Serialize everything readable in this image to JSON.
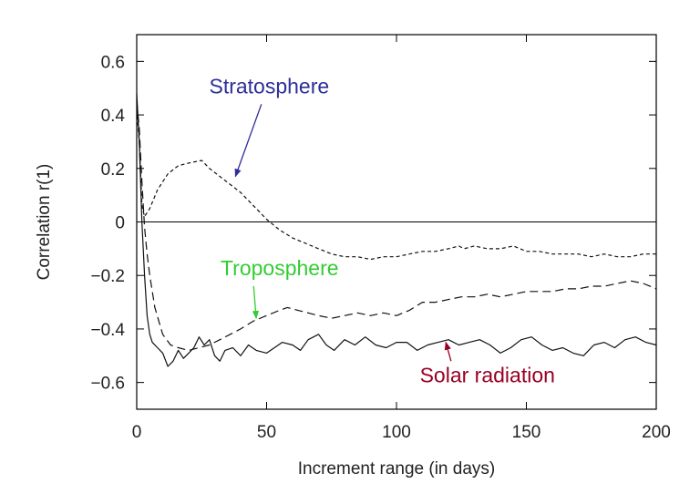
{
  "chart_data": {
    "type": "line",
    "xlabel": "Increment range (in days)",
    "ylabel": "Correlation r(1)",
    "xlim": [
      0,
      200
    ],
    "ylim": [
      -0.7,
      0.7
    ],
    "xticks": [
      0,
      50,
      100,
      150,
      200
    ],
    "yticks": [
      -0.6,
      -0.4,
      -0.2,
      0,
      0.2,
      0.4,
      0.6
    ],
    "xtick_labels": [
      "0",
      "50",
      "100",
      "150",
      "200"
    ],
    "ytick_labels": [
      "−0.6",
      "−0.4",
      "−0.2",
      "0",
      "0.2",
      "0.4",
      "0.6"
    ],
    "grid": false,
    "zero_line": true,
    "series": [
      {
        "name": "Stratosphere",
        "color": "#2e2e99",
        "dash": "short-dash",
        "x": [
          0,
          1,
          2,
          3,
          5,
          8,
          12,
          16,
          20,
          25,
          28,
          32,
          36,
          40,
          45,
          50,
          55,
          60,
          65,
          70,
          75,
          80,
          85,
          90,
          95,
          100,
          105,
          110,
          115,
          120,
          124,
          126,
          130,
          135,
          140,
          145,
          150,
          155,
          160,
          165,
          170,
          175,
          180,
          185,
          190,
          195,
          200
        ],
        "y": [
          0.42,
          0.3,
          0.06,
          0.02,
          0.05,
          0.12,
          0.18,
          0.21,
          0.22,
          0.23,
          0.2,
          0.17,
          0.14,
          0.11,
          0.06,
          0.01,
          -0.03,
          -0.06,
          -0.08,
          -0.1,
          -0.12,
          -0.13,
          -0.13,
          -0.14,
          -0.13,
          -0.13,
          -0.12,
          -0.11,
          -0.11,
          -0.1,
          -0.09,
          -0.1,
          -0.09,
          -0.1,
          -0.1,
          -0.09,
          -0.11,
          -0.11,
          -0.12,
          -0.12,
          -0.12,
          -0.13,
          -0.12,
          -0.13,
          -0.13,
          -0.12,
          -0.12
        ]
      },
      {
        "name": "Troposphere",
        "color": "#33cc33",
        "dash": "long-dash",
        "x": [
          0,
          1,
          2,
          3,
          4,
          5,
          7,
          10,
          13,
          16,
          20,
          24,
          28,
          32,
          36,
          40,
          45,
          50,
          55,
          58,
          62,
          66,
          70,
          75,
          80,
          85,
          90,
          95,
          100,
          105,
          110,
          115,
          120,
          125,
          130,
          135,
          140,
          145,
          150,
          155,
          160,
          165,
          170,
          175,
          180,
          185,
          190,
          195,
          200
        ],
        "y": [
          0.45,
          0.35,
          0.15,
          -0.02,
          -0.12,
          -0.2,
          -0.32,
          -0.42,
          -0.46,
          -0.47,
          -0.48,
          -0.47,
          -0.46,
          -0.44,
          -0.42,
          -0.4,
          -0.37,
          -0.35,
          -0.33,
          -0.32,
          -0.33,
          -0.34,
          -0.35,
          -0.36,
          -0.35,
          -0.34,
          -0.35,
          -0.34,
          -0.35,
          -0.33,
          -0.3,
          -0.3,
          -0.29,
          -0.28,
          -0.28,
          -0.27,
          -0.28,
          -0.27,
          -0.26,
          -0.26,
          -0.26,
          -0.25,
          -0.25,
          -0.24,
          -0.24,
          -0.23,
          -0.22,
          -0.23,
          -0.25
        ]
      },
      {
        "name": "Solar radiation",
        "color": "#990022",
        "dash": "solid",
        "x": [
          0,
          1,
          2,
          3,
          4,
          5,
          6,
          8,
          10,
          12,
          14,
          16,
          18,
          20,
          22,
          24,
          26,
          28,
          30,
          32,
          34,
          37,
          40,
          43,
          46,
          50,
          53,
          56,
          60,
          63,
          66,
          70,
          73,
          76,
          80,
          84,
          88,
          92,
          96,
          100,
          104,
          108,
          112,
          116,
          120,
          124,
          128,
          132,
          136,
          140,
          144,
          148,
          152,
          156,
          160,
          164,
          168,
          172,
          176,
          180,
          184,
          188,
          192,
          196,
          200
        ],
        "y": [
          0.48,
          0.3,
          0.0,
          -0.2,
          -0.35,
          -0.42,
          -0.45,
          -0.47,
          -0.49,
          -0.54,
          -0.52,
          -0.48,
          -0.51,
          -0.49,
          -0.47,
          -0.43,
          -0.46,
          -0.44,
          -0.5,
          -0.52,
          -0.48,
          -0.47,
          -0.5,
          -0.46,
          -0.48,
          -0.49,
          -0.47,
          -0.45,
          -0.46,
          -0.48,
          -0.44,
          -0.42,
          -0.46,
          -0.48,
          -0.44,
          -0.46,
          -0.43,
          -0.46,
          -0.47,
          -0.45,
          -0.45,
          -0.48,
          -0.46,
          -0.45,
          -0.44,
          -0.46,
          -0.45,
          -0.44,
          -0.46,
          -0.49,
          -0.47,
          -0.44,
          -0.43,
          -0.46,
          -0.48,
          -0.47,
          -0.49,
          -0.5,
          -0.46,
          -0.45,
          -0.47,
          -0.44,
          -0.43,
          -0.45,
          -0.46
        ]
      }
    ],
    "annotations": [
      {
        "text": "Stratosphere",
        "color": "#2e2e99",
        "text_at": [
          51,
          0.48
        ],
        "arrow_from": [
          48,
          0.44
        ],
        "arrow_to": [
          38,
          0.17
        ]
      },
      {
        "text": "Troposphere",
        "color": "#33cc33",
        "text_at": [
          55,
          -0.2
        ],
        "arrow_from": [
          45,
          -0.24
        ],
        "arrow_to": [
          46,
          -0.36
        ]
      },
      {
        "text": "Solar radiation",
        "color": "#990022",
        "text_at": [
          135,
          -0.6
        ],
        "arrow_from": [
          121,
          -0.52
        ],
        "arrow_to": [
          119,
          -0.45
        ]
      }
    ]
  }
}
